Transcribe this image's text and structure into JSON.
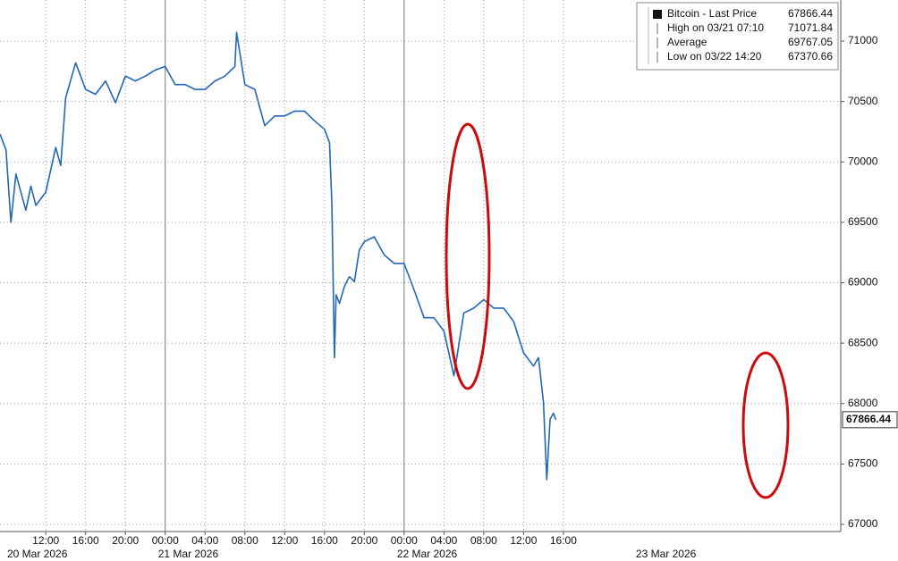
{
  "chart_data": {
    "type": "line",
    "xlim": [
      "2026-03-20 07:24",
      "2026-03-23 19:52"
    ],
    "ylim": [
      66941,
      71340
    ],
    "yticks": [
      67000,
      67500,
      68000,
      68500,
      69000,
      69500,
      70000,
      70500,
      71000
    ],
    "xticks": [
      {
        "value": "2026-03-20 12:00",
        "label": "12:00"
      },
      {
        "value": "2026-03-20 16:00",
        "label": "16:00"
      },
      {
        "value": "2026-03-20 20:00",
        "label": "20:00"
      },
      {
        "value": "2026-03-21 00:00",
        "label": "00:00"
      },
      {
        "value": "2026-03-21 04:00",
        "label": "04:00"
      },
      {
        "value": "2026-03-21 08:00",
        "label": "08:00"
      },
      {
        "value": "2026-03-21 12:00",
        "label": "12:00"
      },
      {
        "value": "2026-03-21 16:00",
        "label": "16:00"
      },
      {
        "value": "2026-03-21 20:00",
        "label": "20:00"
      },
      {
        "value": "2026-03-22 00:00",
        "label": "00:00"
      },
      {
        "value": "2026-03-22 04:00",
        "label": "04:00"
      },
      {
        "value": "2026-03-22 08:00",
        "label": "08:00"
      },
      {
        "value": "2026-03-22 12:00",
        "label": "12:00"
      },
      {
        "value": "2026-03-22 16:00",
        "label": "16:00"
      }
    ],
    "date_labels": [
      {
        "value": "2026-03-20 00:00",
        "label": "20 Mar 2026"
      },
      {
        "value": "2026-03-21 00:00",
        "label": "21 Mar 2026"
      },
      {
        "value": "2026-03-22 00:00",
        "label": "22 Mar 2026"
      },
      {
        "value": "2026-03-23 00:00",
        "label": "23 Mar 2026"
      }
    ],
    "grid": true,
    "legend": {
      "position": "upper right",
      "entries": [
        {
          "label": "Bitcoin - Last Price",
          "value": 67866.44
        },
        {
          "label": "High on 03/21 07:10",
          "value": 71071.84
        },
        {
          "label": "Average",
          "value": 69767.05
        },
        {
          "label": "Low on 03/22 14:20",
          "value": 67370.66
        }
      ]
    },
    "series": [
      {
        "name": "Bitcoin",
        "color": "#2266b8",
        "x": [
          "2026-03-20 07:24",
          "2026-03-20 08:00",
          "2026-03-20 08:30",
          "2026-03-20 09:00",
          "2026-03-20 10:00",
          "2026-03-20 10:30",
          "2026-03-20 11:00",
          "2026-03-20 12:00",
          "2026-03-20 13:00",
          "2026-03-20 13:30",
          "2026-03-20 14:00",
          "2026-03-20 15:00",
          "2026-03-20 16:00",
          "2026-03-20 17:00",
          "2026-03-20 18:00",
          "2026-03-20 19:00",
          "2026-03-20 20:00",
          "2026-03-20 21:00",
          "2026-03-20 22:00",
          "2026-03-20 23:00",
          "2026-03-21 00:00",
          "2026-03-21 01:00",
          "2026-03-21 02:00",
          "2026-03-21 03:00",
          "2026-03-21 04:00",
          "2026-03-21 05:00",
          "2026-03-21 06:00",
          "2026-03-21 07:00",
          "2026-03-21 07:10",
          "2026-03-21 08:00",
          "2026-03-21 09:00",
          "2026-03-21 10:00",
          "2026-03-21 11:00",
          "2026-03-21 12:00",
          "2026-03-21 13:00",
          "2026-03-21 14:00",
          "2026-03-21 15:00",
          "2026-03-21 16:00",
          "2026-03-21 16:30",
          "2026-03-21 16:45",
          "2026-03-21 17:00",
          "2026-03-21 17:10",
          "2026-03-21 17:30",
          "2026-03-21 18:00",
          "2026-03-21 18:30",
          "2026-03-21 19:00",
          "2026-03-21 19:30",
          "2026-03-21 20:00",
          "2026-03-21 21:00",
          "2026-03-21 22:00",
          "2026-03-21 23:00",
          "2026-03-22 00:00",
          "2026-03-22 01:00",
          "2026-03-22 02:00",
          "2026-03-22 03:00",
          "2026-03-22 04:00",
          "2026-03-22 05:00",
          "2026-03-22 06:00",
          "2026-03-22 07:00",
          "2026-03-22 08:00",
          "2026-03-22 09:00",
          "2026-03-22 10:00",
          "2026-03-22 11:00",
          "2026-03-22 12:00",
          "2026-03-22 13:00",
          "2026-03-22 13:30",
          "2026-03-22 14:00",
          "2026-03-22 14:20",
          "2026-03-22 14:40",
          "2026-03-22 15:00",
          "2026-03-22 15:15"
        ],
        "values": [
          70230,
          70100,
          69500,
          69900,
          69600,
          69800,
          69640,
          69750,
          70120,
          69970,
          70530,
          70820,
          70600,
          70560,
          70670,
          70490,
          70710,
          70670,
          70710,
          70760,
          70790,
          70640,
          70640,
          70600,
          70600,
          70670,
          70710,
          70790,
          71071.84,
          70640,
          70600,
          70300,
          70380,
          70380,
          70420,
          70420,
          70340,
          70270,
          70160,
          69640,
          68380,
          68900,
          68830,
          68970,
          69050,
          69010,
          69270,
          69340,
          69380,
          69230,
          69160,
          69160,
          68940,
          68710,
          68710,
          68600,
          68230,
          68750,
          68790,
          68860,
          68790,
          68790,
          68680,
          68420,
          68310,
          68380,
          68010,
          67370.66,
          67870,
          67920,
          67866.44
        ]
      }
    ]
  }
}
